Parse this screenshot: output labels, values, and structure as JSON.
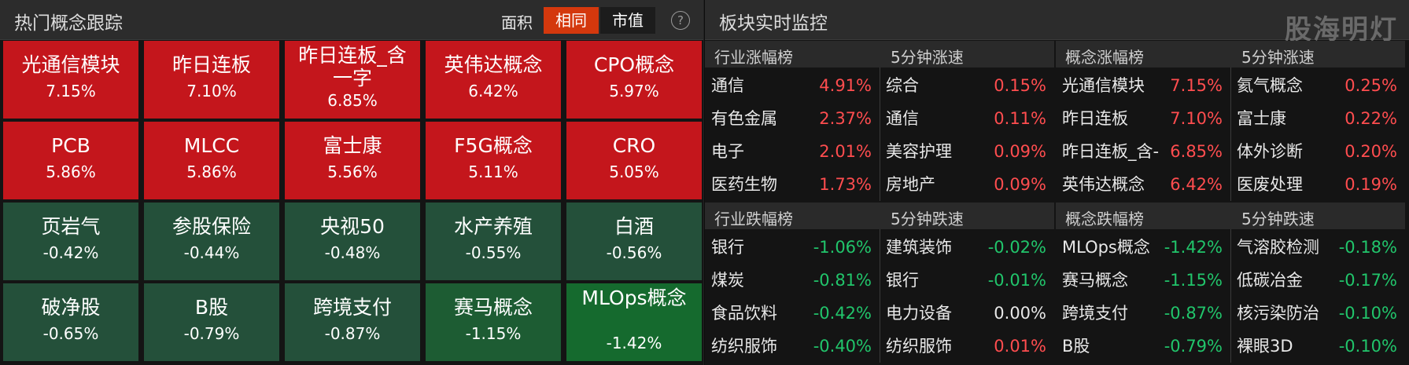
{
  "left_panel": {
    "title": "热门概念跟踪",
    "sort_label": "面积",
    "sort_options": [
      "相同",
      "市值"
    ],
    "sort_active": "相同",
    "help_glyph": "?",
    "tiles": [
      {
        "name": "光通信模块",
        "pct": "7.15%",
        "color": "#c4161c"
      },
      {
        "name": "昨日连板",
        "pct": "7.10%",
        "color": "#c4161c"
      },
      {
        "name": "昨日连板_含一字",
        "pct": "6.85%",
        "color": "#c4161c"
      },
      {
        "name": "英伟达概念",
        "pct": "6.42%",
        "color": "#c4161c"
      },
      {
        "name": "CPO概念",
        "pct": "5.97%",
        "color": "#c4161c"
      },
      {
        "name": "PCB",
        "pct": "5.86%",
        "color": "#c4161c"
      },
      {
        "name": "MLCC",
        "pct": "5.86%",
        "color": "#c4161c"
      },
      {
        "name": "富士康",
        "pct": "5.56%",
        "color": "#c4161c"
      },
      {
        "name": "F5G概念",
        "pct": "5.11%",
        "color": "#c4161c"
      },
      {
        "name": "CRO",
        "pct": "5.05%",
        "color": "#c4161c"
      },
      {
        "name": "页岩气",
        "pct": "-0.42%",
        "color": "#24503a"
      },
      {
        "name": "参股保险",
        "pct": "-0.44%",
        "color": "#24503a"
      },
      {
        "name": "央视50",
        "pct": "-0.48%",
        "color": "#24503a"
      },
      {
        "name": "水产养殖",
        "pct": "-0.55%",
        "color": "#24503a"
      },
      {
        "name": "白酒",
        "pct": "-0.56%",
        "color": "#24503a"
      },
      {
        "name": "破净股",
        "pct": "-0.65%",
        "color": "#24503a"
      },
      {
        "name": "B股",
        "pct": "-0.79%",
        "color": "#24503a"
      },
      {
        "name": "跨境支付",
        "pct": "-0.87%",
        "color": "#24503a"
      },
      {
        "name": "赛马概念",
        "pct": "-1.15%",
        "color": "#1d5c33"
      },
      {
        "name": "MLOps概念",
        "pct": "-1.42%",
        "color": "#156a2e"
      }
    ]
  },
  "right_panel": {
    "title": "板块实时监控",
    "watermark": "股海明灯",
    "sections": [
      {
        "header_left": "行业涨幅榜",
        "header_right": "5分钟涨速",
        "rows": [
          {
            "a_name": "通信",
            "a_val": "4.91%",
            "a_dir": "up",
            "b_name": "综合",
            "b_val": "0.15%",
            "b_dir": "up"
          },
          {
            "a_name": "有色金属",
            "a_val": "2.37%",
            "a_dir": "up",
            "b_name": "通信",
            "b_val": "0.11%",
            "b_dir": "up"
          },
          {
            "a_name": "电子",
            "a_val": "2.01%",
            "a_dir": "up",
            "b_name": "美容护理",
            "b_val": "0.09%",
            "b_dir": "up"
          },
          {
            "a_name": "医药生物",
            "a_val": "1.73%",
            "a_dir": "up",
            "b_name": "房地产",
            "b_val": "0.09%",
            "b_dir": "up"
          }
        ]
      },
      {
        "header_left": "概念涨幅榜",
        "header_right": "5分钟涨速",
        "rows": [
          {
            "a_name": "光通信模块",
            "a_val": "7.15%",
            "a_dir": "up",
            "b_name": "氦气概念",
            "b_val": "0.25%",
            "b_dir": "up"
          },
          {
            "a_name": "昨日连板",
            "a_val": "7.10%",
            "a_dir": "up",
            "b_name": "富士康",
            "b_val": "0.22%",
            "b_dir": "up"
          },
          {
            "a_name": "昨日连板_含-",
            "a_val": "6.85%",
            "a_dir": "up",
            "b_name": "体外诊断",
            "b_val": "0.20%",
            "b_dir": "up"
          },
          {
            "a_name": "英伟达概念",
            "a_val": "6.42%",
            "a_dir": "up",
            "b_name": "医废处理",
            "b_val": "0.19%",
            "b_dir": "up"
          }
        ]
      },
      {
        "header_left": "行业跌幅榜",
        "header_right": "5分钟跌速",
        "rows": [
          {
            "a_name": "银行",
            "a_val": "-1.06%",
            "a_dir": "down",
            "b_name": "建筑装饰",
            "b_val": "-0.02%",
            "b_dir": "down"
          },
          {
            "a_name": "煤炭",
            "a_val": "-0.81%",
            "a_dir": "down",
            "b_name": "银行",
            "b_val": "-0.01%",
            "b_dir": "down"
          },
          {
            "a_name": "食品饮料",
            "a_val": "-0.42%",
            "a_dir": "down",
            "b_name": "电力设备",
            "b_val": "0.00%",
            "b_dir": "flat"
          },
          {
            "a_name": "纺织服饰",
            "a_val": "-0.40%",
            "a_dir": "down",
            "b_name": "纺织服饰",
            "b_val": "0.01%",
            "b_dir": "up"
          }
        ]
      },
      {
        "header_left": "概念跌幅榜",
        "header_right": "5分钟跌速",
        "rows": [
          {
            "a_name": "MLOps概念",
            "a_val": "-1.42%",
            "a_dir": "down",
            "b_name": "气溶胶检测",
            "b_val": "-0.18%",
            "b_dir": "down"
          },
          {
            "a_name": "赛马概念",
            "a_val": "-1.15%",
            "a_dir": "down",
            "b_name": "低碳冶金",
            "b_val": "-0.17%",
            "b_dir": "down"
          },
          {
            "a_name": "跨境支付",
            "a_val": "-0.87%",
            "a_dir": "down",
            "b_name": "核污染防治",
            "b_val": "-0.10%",
            "b_dir": "down"
          },
          {
            "a_name": "B股",
            "a_val": "-0.79%",
            "a_dir": "down",
            "b_name": "裸眼3D",
            "b_val": "-0.10%",
            "b_dir": "down"
          }
        ]
      }
    ]
  }
}
